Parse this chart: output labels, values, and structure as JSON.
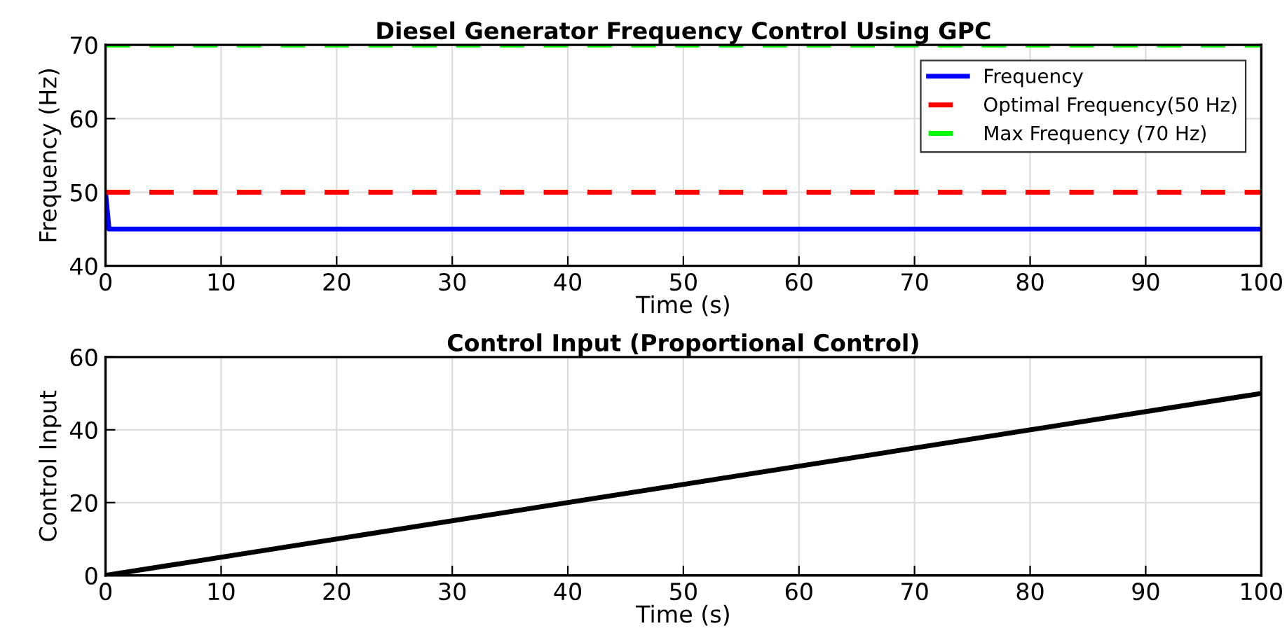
{
  "chart_data": [
    {
      "type": "line",
      "title": "Diesel Generator Frequency Control Using GPC",
      "xlabel": "Time (s)",
      "ylabel": "Frequency (Hz)",
      "series": [
        {
          "name": "Frequency",
          "color": "#0000ff",
          "line_style": "solid",
          "x": [
            0,
            0.3,
            100
          ],
          "values": [
            50,
            45,
            45
          ]
        },
        {
          "name": "Optimal Frequency(50 Hz)",
          "color": "#ff0000",
          "line_style": "dashed",
          "x": [
            0,
            100
          ],
          "values": [
            50,
            50
          ]
        },
        {
          "name": "Max Frequency (70 Hz)",
          "color": "#00ff00",
          "line_style": "dashed",
          "x": [
            0,
            100
          ],
          "values": [
            70,
            70
          ]
        }
      ],
      "xlim": [
        0,
        100
      ],
      "xticks": [
        0,
        10,
        20,
        30,
        40,
        50,
        60,
        70,
        80,
        90,
        100
      ],
      "ylim": [
        40,
        70
      ],
      "yticks": [
        40,
        50,
        60,
        70
      ],
      "grid": true,
      "legend": "top right"
    },
    {
      "type": "line",
      "title": "Control Input (Proportional Control)",
      "xlabel": "Time (s)",
      "ylabel": "Control Input",
      "series": [
        {
          "color": "#000000",
          "line_style": "solid",
          "x": [
            0,
            100
          ],
          "values": [
            0,
            50
          ]
        }
      ],
      "xlim": [
        0,
        100
      ],
      "xticks": [
        0,
        10,
        20,
        30,
        40,
        50,
        60,
        70,
        80,
        90,
        100
      ],
      "ylim": [
        0,
        60
      ],
      "yticks": [
        0,
        20,
        40,
        60
      ],
      "grid": true
    }
  ]
}
